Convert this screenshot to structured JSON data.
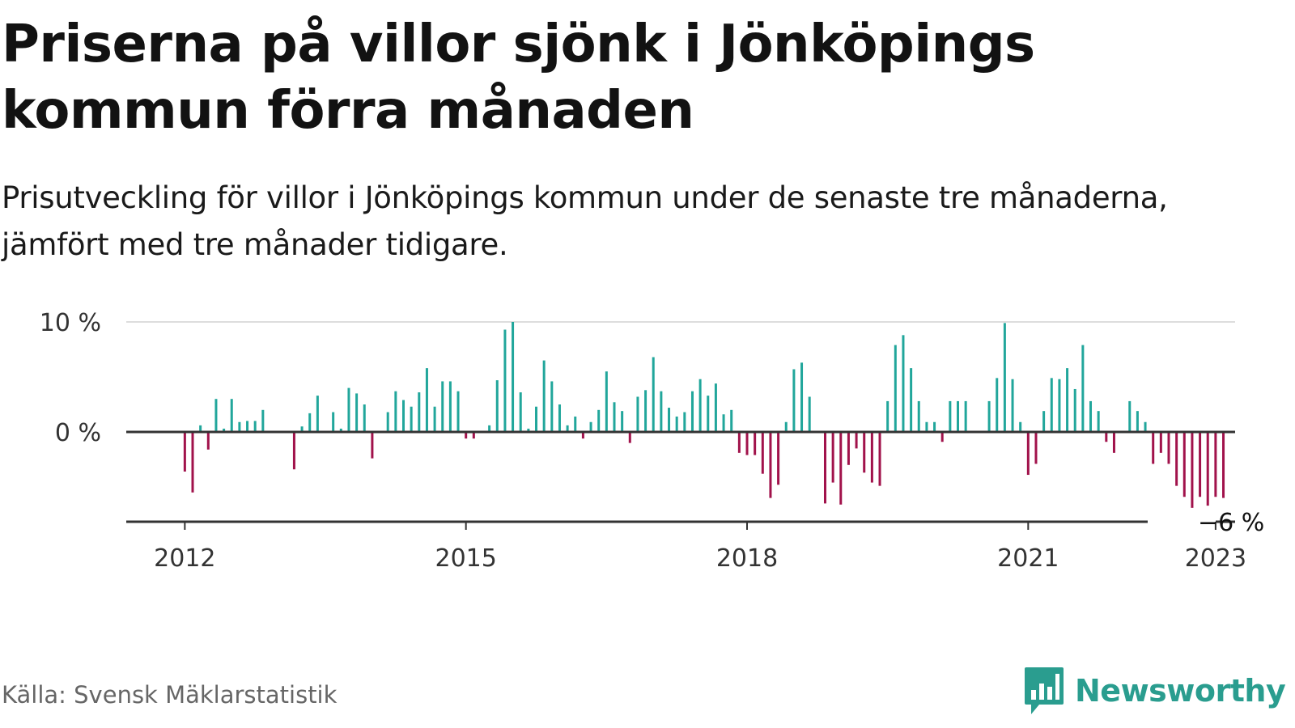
{
  "title": "Priserna på villor sjönk i Jönköpings kommun förra månaden",
  "subtitle": "Prisutveckling för villor i Jönköpings kommun under de senaste tre månaderna, jämfört med tre månader tidigare.",
  "source": "Källa: Svensk Mäklarstatistik",
  "brand": {
    "name": "Newsworthy",
    "logo_icon": "newsworthy-bar-chart-icon"
  },
  "colors": {
    "positive": "#21a69b",
    "negative": "#a1124b",
    "brand": "#2a9d8f",
    "axis": "#333333",
    "grid": "#dddddd"
  },
  "chart_data": {
    "type": "bar",
    "title": "",
    "xlabel": "",
    "ylabel": "",
    "x_start": "2011-06",
    "x_end": "2023-03",
    "ylim": [
      -8,
      10
    ],
    "y_ticks": [
      {
        "value": 10,
        "label": "10 %"
      },
      {
        "value": 0,
        "label": "0 %"
      }
    ],
    "x_ticks": [
      {
        "date": "2012-01",
        "label": "2012"
      },
      {
        "date": "2015-01",
        "label": "2015"
      },
      {
        "date": "2018-01",
        "label": "2018"
      },
      {
        "date": "2021-01",
        "label": "2021"
      },
      {
        "date": "2023-01",
        "label": "2023"
      }
    ],
    "grid": "horizontal",
    "end_label": "−6 %",
    "end_value": -6,
    "series": [
      {
        "start": "2011-06",
        "values": [
          null,
          null,
          null,
          null,
          null,
          null,
          null,
          -3.6,
          -5.5,
          0.6,
          -1.6,
          3.0,
          0.3,
          3.0,
          0.9,
          1.0,
          1.0,
          2.0,
          null,
          null,
          null,
          -3.4,
          0.5,
          1.7,
          3.3,
          0,
          1.8,
          0.3,
          4.0,
          3.5,
          2.5,
          -2.4,
          0,
          1.8,
          3.7,
          2.9,
          2.3,
          3.6,
          5.8,
          2.3,
          4.6,
          4.6,
          3.7,
          -0.6,
          -0.6,
          0,
          0.6,
          4.7,
          9.3,
          10.0,
          3.6,
          0.3,
          2.3,
          6.5,
          4.6,
          2.5,
          0.6,
          1.4,
          -0.6,
          0.9,
          2.0,
          5.5,
          2.7,
          1.9,
          -1.0,
          3.2,
          3.8,
          6.8,
          3.7,
          2.2,
          1.4,
          1.8,
          3.7,
          4.8,
          3.3,
          4.4,
          1.6,
          2.0,
          -1.9,
          -2.1,
          -2.1,
          -3.8,
          -6.0,
          -4.8,
          0.9,
          5.7,
          6.3,
          3.2,
          0,
          -6.5,
          -4.6,
          -6.6,
          -3.0,
          -1.5,
          -3.7,
          -4.6,
          -4.9,
          2.8,
          7.9,
          8.8,
          5.8,
          2.8,
          0.9,
          0.9,
          -0.9,
          2.8,
          2.8,
          2.8,
          0,
          0,
          2.8,
          4.9,
          9.9,
          4.8,
          0.9,
          -3.9,
          -2.9,
          1.9,
          4.9,
          4.8,
          5.8,
          3.9,
          7.9,
          2.8,
          1.9,
          -0.9,
          -1.9,
          0,
          2.8,
          1.9,
          0.9,
          -2.9,
          -1.9,
          -2.9,
          -4.9,
          -5.9,
          -6.9,
          -5.9,
          -6.7,
          -5.9,
          -6.0
        ]
      }
    ]
  }
}
